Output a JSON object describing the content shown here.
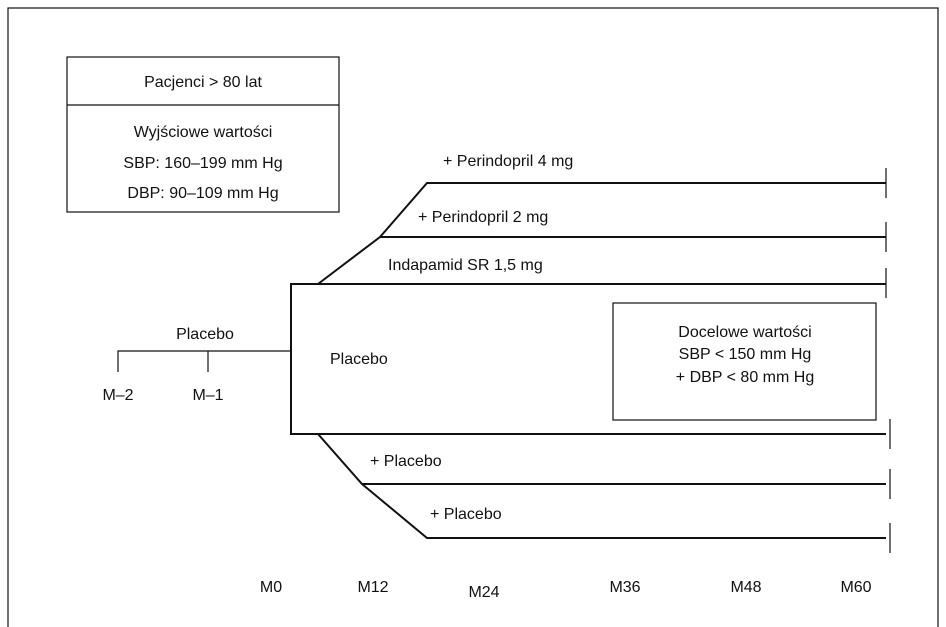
{
  "baseline_box": {
    "title": "Pacjenci > 80 lat",
    "lines": [
      "Wyjściowe wartości",
      "SBP: 160–199 mm Hg",
      "DBP: 90–109 mm Hg"
    ]
  },
  "run_in": {
    "label": "Placebo",
    "ticks": [
      "M–2",
      "M–1"
    ]
  },
  "arms": {
    "active": [
      "+ Perindopril 4 mg",
      "+ Perindopril 2 mg",
      "Indapamid SR 1,5 mg"
    ],
    "placebo": [
      "Placebo",
      "+ Placebo",
      "+ Placebo"
    ]
  },
  "target_box": {
    "lines": [
      "Docelowe wartości",
      "SBP < 150 mm Hg",
      "+ DBP < 80 mm Hg"
    ]
  },
  "timepoints": [
    "M0",
    "M12",
    "M24",
    "M36",
    "M48",
    "M60"
  ]
}
